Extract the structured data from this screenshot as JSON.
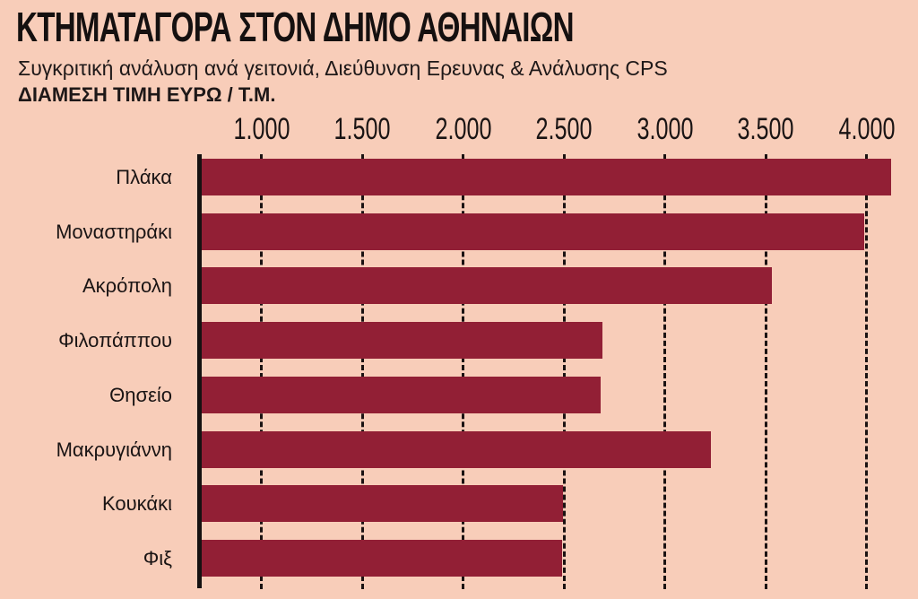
{
  "header": {
    "title": "ΚΤΗΜΑΤΑΓΟΡΑ ΣΤΟΝ ΔΗΜΟ ΑΘΗΝΑΙΩΝ",
    "subtitle": "Συγκριτική ανάλυση ανά γειτονιά, Διεύθυνση Ερευνας & Ανάλυσης CPS",
    "unit_label": "ΔΙΑΜΕΣΗ ΤΙΜΗ ΕΥΡΩ / Τ.Μ."
  },
  "axis": {
    "ticks": [
      {
        "value": 1000,
        "label": "1.000"
      },
      {
        "value": 1500,
        "label": "1.500"
      },
      {
        "value": 2000,
        "label": "2.000"
      },
      {
        "value": 2500,
        "label": "2.500"
      },
      {
        "value": 3000,
        "label": "3.000"
      },
      {
        "value": 3500,
        "label": "3.500"
      },
      {
        "value": 4000,
        "label": "4.000"
      }
    ]
  },
  "colors": {
    "background": "#f8cdb9",
    "bar": "#921f35",
    "text": "#1a1414"
  },
  "chart_data": {
    "type": "bar",
    "orientation": "horizontal",
    "title": "ΚΤΗΜΑΤΑΓΟΡΑ ΣΤΟΝ ΔΗΜΟ ΑΘΗΝΑΙΩΝ",
    "subtitle": "Συγκριτική ανάλυση ανά γειτονιά, Διεύθυνση Ερευνας & Ανάλυσης CPS",
    "xlabel": "ΔΙΑΜΕΣΗ ΤΙΜΗ ΕΥΡΩ / Τ.Μ.",
    "ylabel": "",
    "categories": [
      "Πλάκα",
      "Μοναστηράκι",
      "Ακρόπολη",
      "Φιλοπάππου",
      "Θησείο",
      "Μακρυγιάννη",
      "Κουκάκι",
      "Φιξ"
    ],
    "values": [
      4120,
      3990,
      3530,
      2690,
      2680,
      3230,
      2495,
      2490
    ],
    "xlim": [
      690,
      4200
    ],
    "xticks": [
      1000,
      1500,
      2000,
      2500,
      3000,
      3500,
      4000
    ],
    "xtick_labels": [
      "1.000",
      "1.500",
      "2.000",
      "2.500",
      "3.000",
      "3.500",
      "4.000"
    ],
    "grid": "vertical dashed at ticks",
    "axis_position": "top",
    "legend": "none"
  }
}
